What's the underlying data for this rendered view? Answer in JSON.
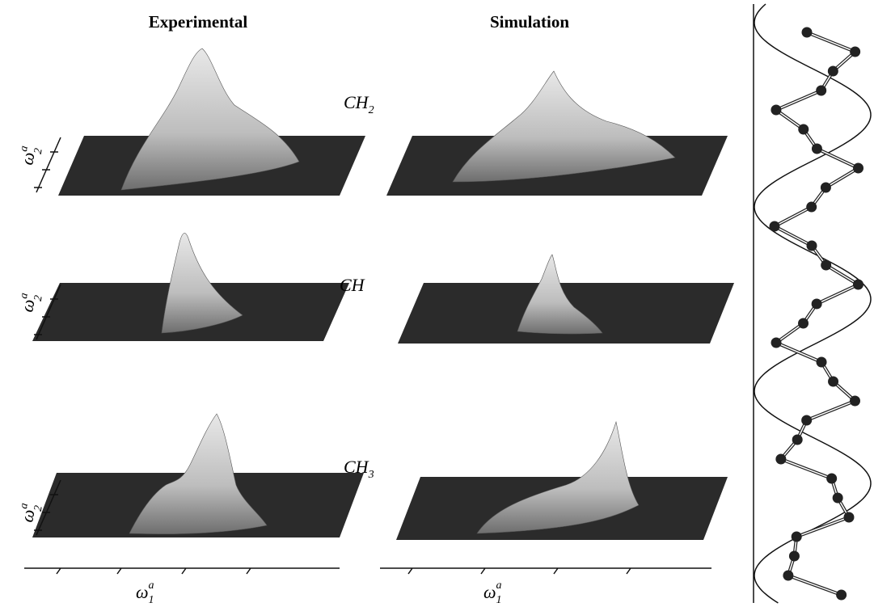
{
  "columns": [
    "Experimental",
    "Simulation"
  ],
  "rows": [
    {
      "label": "CH",
      "subscript": "2"
    },
    {
      "label": "CH"
    },
    {
      "label": "CH",
      "subscript": "3"
    }
  ],
  "y_axis": {
    "symbol": "ω",
    "superscript": "a",
    "subscript": "2"
  },
  "x_axis": {
    "symbol": "ω",
    "superscript": "a",
    "subscript": "1"
  }
}
